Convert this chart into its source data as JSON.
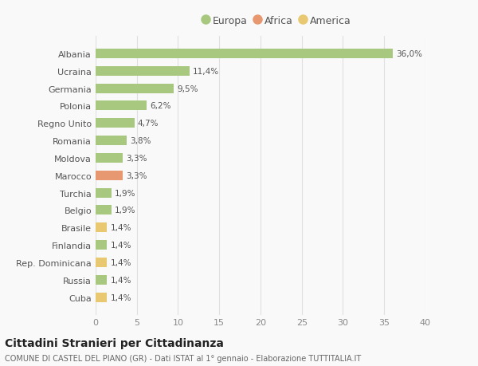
{
  "countries": [
    "Albania",
    "Ucraina",
    "Germania",
    "Polonia",
    "Regno Unito",
    "Romania",
    "Moldova",
    "Marocco",
    "Turchia",
    "Belgio",
    "Brasile",
    "Finlandia",
    "Rep. Dominicana",
    "Russia",
    "Cuba"
  ],
  "values": [
    36.0,
    11.4,
    9.5,
    6.2,
    4.7,
    3.8,
    3.3,
    3.3,
    1.9,
    1.9,
    1.4,
    1.4,
    1.4,
    1.4,
    1.4
  ],
  "labels": [
    "36,0%",
    "11,4%",
    "9,5%",
    "6,2%",
    "4,7%",
    "3,8%",
    "3,3%",
    "3,3%",
    "1,9%",
    "1,9%",
    "1,4%",
    "1,4%",
    "1,4%",
    "1,4%",
    "1,4%"
  ],
  "continents": [
    "Europa",
    "Europa",
    "Europa",
    "Europa",
    "Europa",
    "Europa",
    "Europa",
    "Africa",
    "Europa",
    "Europa",
    "America",
    "Europa",
    "America",
    "Europa",
    "America"
  ],
  "colors": {
    "Europa": "#a8c880",
    "Africa": "#e89870",
    "America": "#e8c870"
  },
  "legend_items": [
    "Europa",
    "Africa",
    "America"
  ],
  "title": "Cittadini Stranieri per Cittadinanza",
  "subtitle": "COMUNE DI CASTEL DEL PIANO (GR) - Dati ISTAT al 1° gennaio - Elaborazione TUTTITALIA.IT",
  "xlim": [
    0,
    40
  ],
  "xticks": [
    0,
    5,
    10,
    15,
    20,
    25,
    30,
    35,
    40
  ],
  "background_color": "#f9f9f9",
  "grid_color": "#e0e0e0"
}
